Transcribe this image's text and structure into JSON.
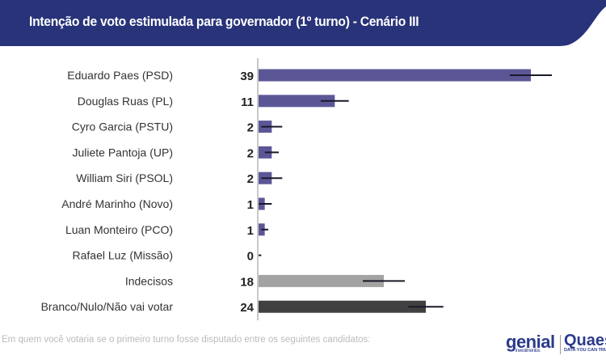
{
  "header": {
    "title": "Intenção de voto estimulada para governador (1º turno) - Cenário III",
    "color": "#283379"
  },
  "chart_data": {
    "type": "bar",
    "orientation": "horizontal",
    "title": "Intenção de voto estimulada para governador (1º turno) - Cenário III",
    "categories": [
      "Eduardo Paes (PSD)",
      "Douglas Ruas (PL)",
      "Cyro Garcia (PSTU)",
      "Juliete Pantoja (UP)",
      "William Siri (PSOL)",
      "André Marinho (Novo)",
      "Luan Monteiro (PCO)",
      "Rafael Luz (Missão)",
      "Indecisos",
      "Branco/Nulo/Não vai votar"
    ],
    "values": [
      39,
      11,
      2,
      2,
      2,
      1,
      1,
      0,
      18,
      24
    ],
    "error_margin": [
      3,
      2,
      1.5,
      1,
      1.5,
      1,
      0.5,
      0.5,
      3,
      2.5
    ],
    "colors": [
      "#5b5797",
      "#5b5797",
      "#5b5797",
      "#5b5797",
      "#5b5797",
      "#5b5797",
      "#5b5797",
      "#5b5797",
      "#a3a3a3",
      "#404040"
    ],
    "xlim": [
      0,
      46
    ],
    "grid": false
  },
  "footnote": "Em quem você votaria se o primeiro turno fosse disputado entre os seguintes candidatos:",
  "logos": {
    "genial": "genial",
    "genial_sub": "investimentos",
    "quaest": "Quaest",
    "quaest_sub": "DATA YOU CAN TRUST"
  }
}
